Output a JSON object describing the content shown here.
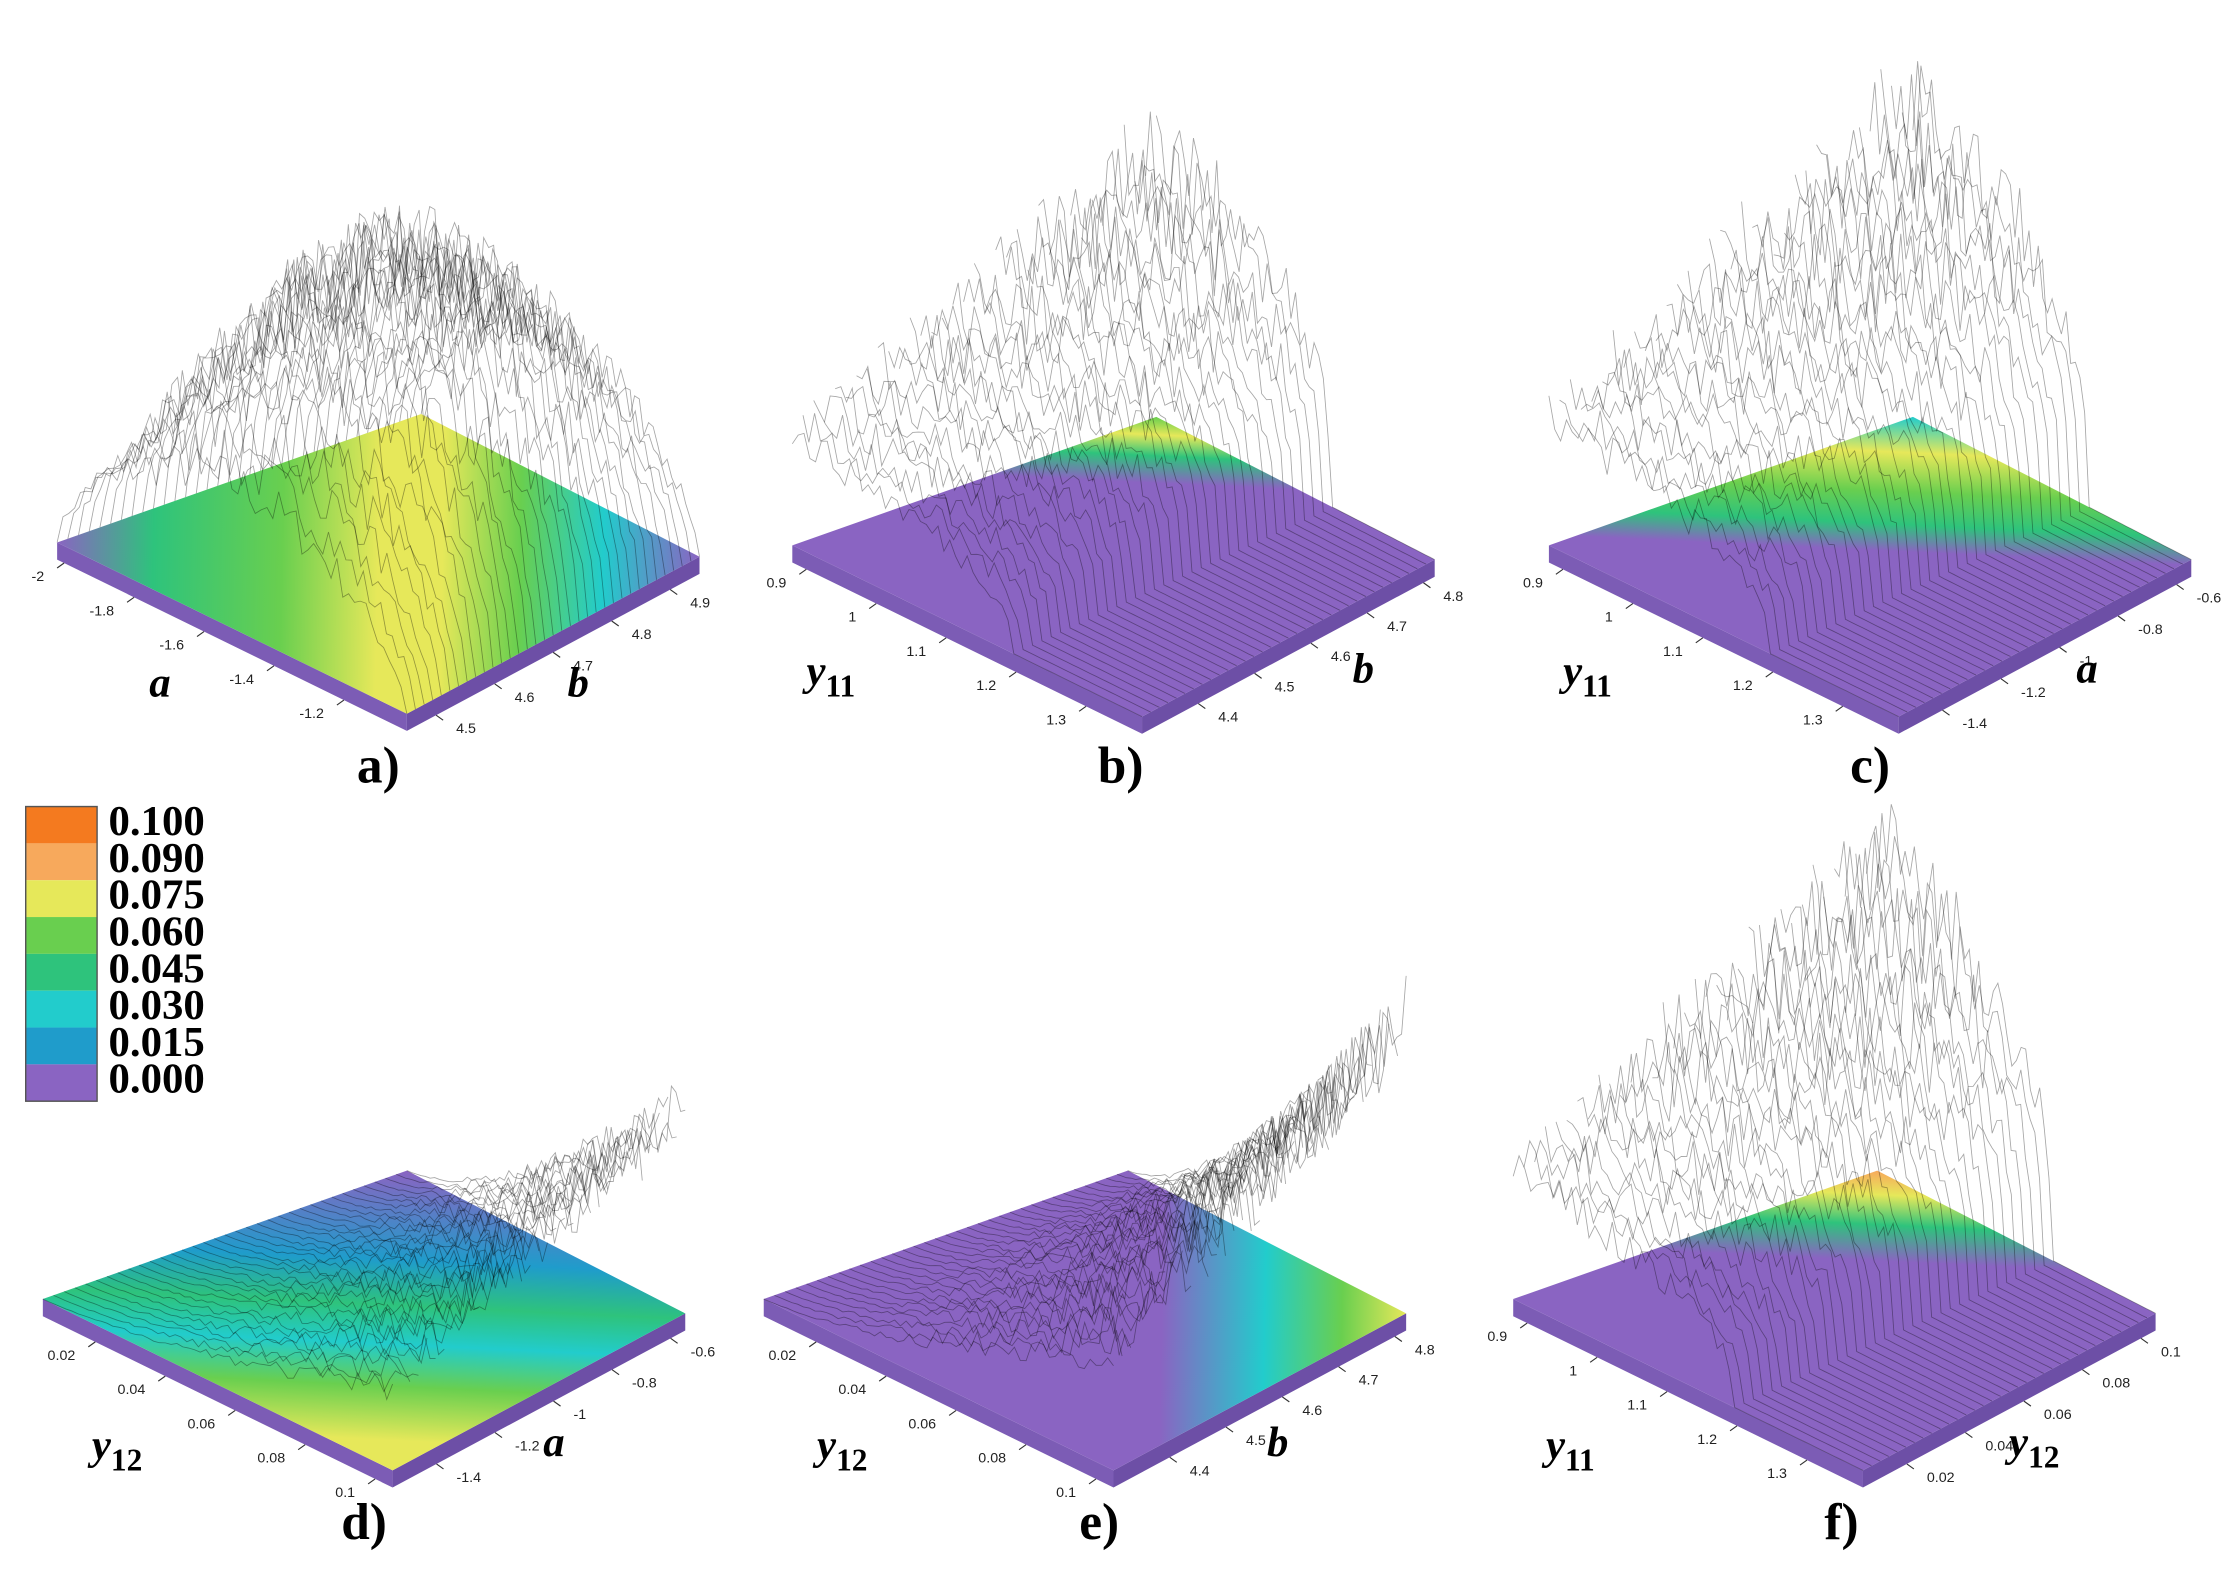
{
  "chart_data": [
    {
      "type": "surface3d",
      "panel_label": "a)",
      "xlabel": "a",
      "ylabel": "b",
      "xlim": [
        -2.02,
        -1.02
      ],
      "xticks": [
        -2,
        -1.8,
        -1.6,
        -1.4,
        -1.2
      ],
      "ylim": [
        4.45,
        4.95
      ],
      "yticks": [
        4.5,
        4.6,
        4.7,
        4.8,
        4.9
      ]
    },
    {
      "type": "surface3d",
      "panel_label": "b)",
      "xlabel": "y",
      "xlabel_subscript": "11",
      "ylabel": "b",
      "xlim": [
        0.88,
        1.38
      ],
      "xticks": [
        0.9,
        1,
        1.1,
        1.2,
        1.3
      ],
      "ylim": [
        4.3,
        4.82
      ],
      "yticks": [
        4.4,
        4.5,
        4.6,
        4.7,
        4.8
      ]
    },
    {
      "type": "surface3d",
      "panel_label": "c)",
      "xlabel": "y",
      "xlabel_subscript": "11",
      "ylabel": "a",
      "xlim": [
        0.88,
        1.38
      ],
      "xticks": [
        0.9,
        1,
        1.1,
        1.2,
        1.3
      ],
      "ylim": [
        -1.55,
        -0.55
      ],
      "yticks": [
        -1.4,
        -1.2,
        -1,
        -0.8,
        -0.6
      ]
    },
    {
      "type": "surface3d",
      "panel_label": "d)",
      "xlabel": "y",
      "xlabel_subscript": "12",
      "ylabel": "a",
      "xlim": [
        0.005,
        0.105
      ],
      "xticks": [
        0.02,
        0.04,
        0.06,
        0.08,
        0.1
      ],
      "ylim": [
        -1.55,
        -0.55
      ],
      "yticks": [
        -1.4,
        -1.2,
        -1,
        -0.8,
        -0.6
      ]
    },
    {
      "type": "surface3d",
      "panel_label": "e)",
      "xlabel": "y",
      "xlabel_subscript": "12",
      "ylabel": "b",
      "xlim": [
        0.005,
        0.105
      ],
      "xticks": [
        0.02,
        0.04,
        0.06,
        0.08,
        0.1
      ],
      "ylim": [
        4.3,
        4.82
      ],
      "yticks": [
        4.4,
        4.5,
        4.6,
        4.7,
        4.8
      ]
    },
    {
      "type": "surface3d",
      "panel_label": "f)",
      "xlabel": "y",
      "xlabel_subscript": "11",
      "ylabel": "y",
      "ylabel_subscript": "12",
      "xlim": [
        0.88,
        1.38
      ],
      "xticks": [
        0.9,
        1,
        1.1,
        1.2,
        1.3
      ],
      "ylim": [
        0.005,
        0.105
      ],
      "yticks": [
        0.02,
        0.04,
        0.06,
        0.08,
        0.1
      ]
    }
  ],
  "colorbar": {
    "levels": [
      {
        "value": 0.1,
        "label": "0.100",
        "color": "#f47a1f"
      },
      {
        "value": 0.09,
        "label": "0.090",
        "color": "#f7a95c"
      },
      {
        "value": 0.075,
        "label": "0.075",
        "color": "#e6e85a"
      },
      {
        "value": 0.06,
        "label": "0.060",
        "color": "#69cf4f"
      },
      {
        "value": 0.045,
        "label": "0.045",
        "color": "#2ec37c"
      },
      {
        "value": 0.03,
        "label": "0.030",
        "color": "#22cccc"
      },
      {
        "value": 0.015,
        "label": "0.015",
        "color": "#1f9ccb"
      },
      {
        "value": 0,
        "label": "0.000",
        "color": "#8a64c2"
      }
    ]
  }
}
